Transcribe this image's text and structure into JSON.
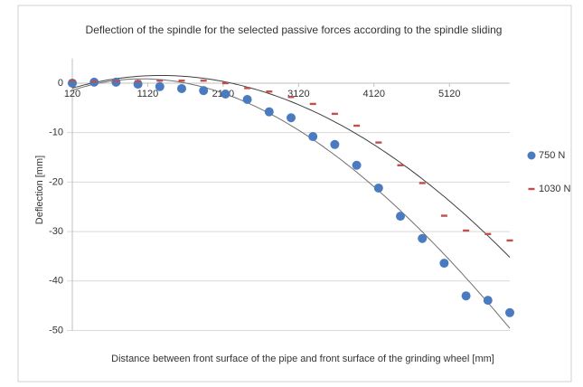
{
  "chart_data": {
    "type": "scatter",
    "title": "Deflection of the spindle for the selected passive forces according to the spindle sliding",
    "x_label": "Distance between front surface of the pipe and front surface of the grinding wheel [mm]",
    "y_label": "Deflection [mm]",
    "x": [
      120,
      410,
      700,
      990,
      1280,
      1570,
      1860,
      2150,
      2440,
      2730,
      3020,
      3310,
      3600,
      3890,
      4180,
      4470,
      4760,
      5050,
      5340,
      5630,
      5920
    ],
    "series": [
      {
        "name": "750 N",
        "color": "#4a7bc0",
        "marker": "circle",
        "values": [
          0,
          0.2,
          0.2,
          -0.2,
          -0.7,
          -1.1,
          -1.5,
          -2.2,
          -3.3,
          -5.8,
          -7,
          -10.8,
          -12.4,
          -16.6,
          -21.2,
          -26.9,
          -31.4,
          -36.4,
          -43,
          -43.9,
          -46.4
        ]
      },
      {
        "name": "1030 N",
        "color": "#c0504d",
        "marker": "dash",
        "values": [
          0.5,
          0.3,
          0.4,
          0.4,
          0.5,
          0.5,
          0.5,
          0,
          -1,
          -1.7,
          -2.8,
          -4.2,
          -6.2,
          -8.6,
          -12,
          -16.6,
          -20.2,
          -26.8,
          -29.8,
          -30.5,
          -31.8
        ]
      }
    ],
    "trendline": "polynomial",
    "xlim": [
      120,
      5920
    ],
    "xticks": [
      120,
      1120,
      2120,
      3120,
      4120,
      5120
    ],
    "ylim": [
      -50,
      5
    ],
    "yticks": [
      -50,
      -40,
      -30,
      -20,
      -10,
      0
    ],
    "grid": true,
    "legend": "right"
  }
}
